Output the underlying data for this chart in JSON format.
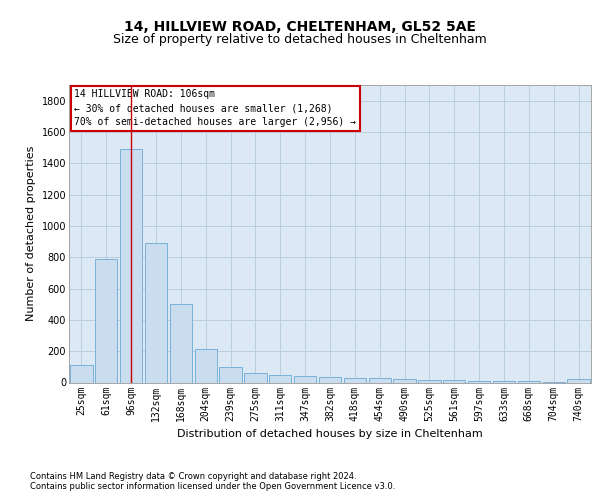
{
  "title1": "14, HILLVIEW ROAD, CHELTENHAM, GL52 5AE",
  "title2": "Size of property relative to detached houses in Cheltenham",
  "xlabel": "Distribution of detached houses by size in Cheltenham",
  "ylabel": "Number of detached properties",
  "categories": [
    "25sqm",
    "61sqm",
    "96sqm",
    "132sqm",
    "168sqm",
    "204sqm",
    "239sqm",
    "275sqm",
    "311sqm",
    "347sqm",
    "382sqm",
    "418sqm",
    "454sqm",
    "490sqm",
    "525sqm",
    "561sqm",
    "597sqm",
    "633sqm",
    "668sqm",
    "704sqm",
    "740sqm"
  ],
  "values": [
    110,
    790,
    1490,
    890,
    500,
    215,
    100,
    60,
    45,
    40,
    35,
    30,
    28,
    22,
    18,
    15,
    12,
    10,
    8,
    6,
    22
  ],
  "bar_color": "#c9ddef",
  "bar_edge_color": "#6aaad4",
  "annotation_title": "14 HILLVIEW ROAD: 106sqm",
  "annotation_line1": "← 30% of detached houses are smaller (1,268)",
  "annotation_line2": "70% of semi-detached houses are larger (2,956) →",
  "annotation_box_color": "#ffffff",
  "annotation_box_edge": "#cc0000",
  "vline_color": "#cc0000",
  "footer1": "Contains HM Land Registry data © Crown copyright and database right 2024.",
  "footer2": "Contains public sector information licensed under the Open Government Licence v3.0.",
  "ylim": [
    0,
    1900
  ],
  "yticks": [
    0,
    200,
    400,
    600,
    800,
    1000,
    1200,
    1400,
    1600,
    1800
  ],
  "background_color": "#ffffff",
  "plot_bg_color": "#dce9f5",
  "grid_color": "#b8cfe0",
  "title1_fontsize": 10,
  "title2_fontsize": 9,
  "axis_fontsize": 8,
  "tick_fontsize": 7,
  "footer_fontsize": 6
}
